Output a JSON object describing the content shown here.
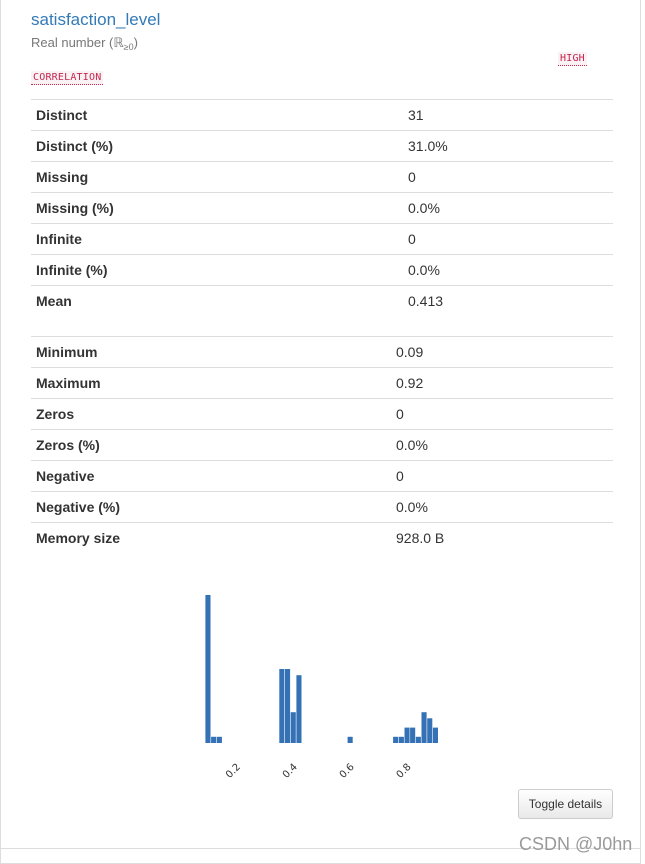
{
  "variable": {
    "name": "satisfaction_level",
    "type_text": "Real number (ℝ",
    "type_sub": "≥0",
    "type_close": ")"
  },
  "badges": {
    "high": "HIGH",
    "correlation": "CORRELATION"
  },
  "stats_left": [
    {
      "label": "Distinct",
      "value": "31"
    },
    {
      "label": "Distinct (%)",
      "value": "31.0%"
    },
    {
      "label": "Missing",
      "value": "0"
    },
    {
      "label": "Missing (%)",
      "value": "0.0%"
    },
    {
      "label": "Infinite",
      "value": "0"
    },
    {
      "label": "Infinite (%)",
      "value": "0.0%"
    },
    {
      "label": "Mean",
      "value": "0.413"
    }
  ],
  "stats_right": [
    {
      "label": "Minimum",
      "value": "0.09"
    },
    {
      "label": "Maximum",
      "value": "0.92"
    },
    {
      "label": "Zeros",
      "value": "0"
    },
    {
      "label": "Zeros (%)",
      "value": "0.0%"
    },
    {
      "label": "Negative",
      "value": "0"
    },
    {
      "label": "Negative (%)",
      "value": "0.0%"
    },
    {
      "label": "Memory size",
      "value": "928.0 B"
    }
  ],
  "chart_data": {
    "type": "bar",
    "bar_color": "#3571b5",
    "xlim": [
      0.09,
      0.92
    ],
    "bins": [
      {
        "x": 0.105,
        "y": 24
      },
      {
        "x": 0.125,
        "y": 1
      },
      {
        "x": 0.145,
        "y": 1
      },
      {
        "x": 0.365,
        "y": 12
      },
      {
        "x": 0.385,
        "y": 12
      },
      {
        "x": 0.405,
        "y": 5
      },
      {
        "x": 0.425,
        "y": 11
      },
      {
        "x": 0.605,
        "y": 1
      },
      {
        "x": 0.765,
        "y": 1
      },
      {
        "x": 0.785,
        "y": 1
      },
      {
        "x": 0.805,
        "y": 2.5
      },
      {
        "x": 0.825,
        "y": 2.5
      },
      {
        "x": 0.845,
        "y": 1
      },
      {
        "x": 0.865,
        "y": 5
      },
      {
        "x": 0.885,
        "y": 4
      },
      {
        "x": 0.905,
        "y": 2.5
      }
    ],
    "ymax": 24,
    "xticks": [
      "0.2",
      "0.4",
      "0.6",
      "0.8"
    ]
  },
  "buttons": {
    "toggle_details": "Toggle details"
  },
  "watermark": "CSDN @J0hn"
}
